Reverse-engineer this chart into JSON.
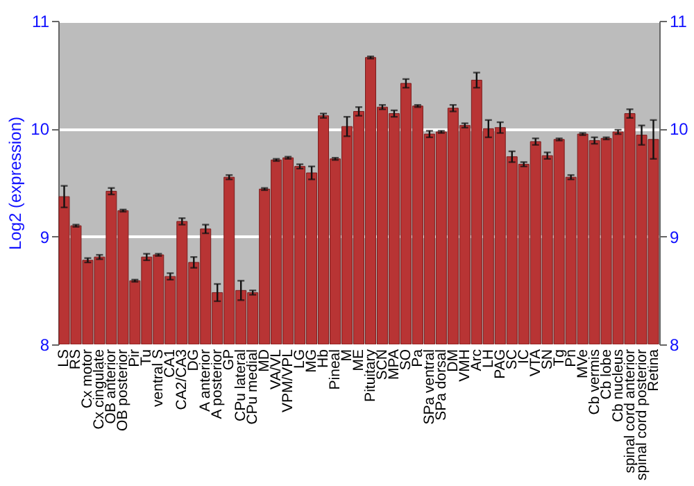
{
  "chart_data": {
    "type": "bar",
    "ylabel": "Log2 (expression)",
    "categories": [
      "LS",
      "RS",
      "Cx motor",
      "Cx cingulate",
      "OB anterior",
      "OB posterior",
      "Pir",
      "Tu",
      "ventral S",
      "CA1",
      "CA2/CA3",
      "DG",
      "A anterior",
      "A posterior",
      "GP",
      "CPu lateral",
      "CPu medial",
      "MD",
      "VA/VL",
      "VPM/VPL",
      "LG",
      "MG",
      "Hb",
      "Pineal",
      "M",
      "ME",
      "Pituitary",
      "SCN",
      "MPA",
      "SO",
      "Pa",
      "SPa ventral",
      "SPa dorsal",
      "DM",
      "VMH",
      "Arc",
      "LH",
      "PAG",
      "SC",
      "IC",
      "VTA",
      "SN",
      "Tg",
      "Pn",
      "MVe",
      "Cb vermis",
      "Cb lobe",
      "Cb nucleus",
      "spinal cord anterior",
      "spinal cord posterior",
      "Retina"
    ],
    "values": [
      9.37,
      9.1,
      8.78,
      8.81,
      9.42,
      9.24,
      8.59,
      8.81,
      8.83,
      8.63,
      9.14,
      8.76,
      9.07,
      8.48,
      9.55,
      8.5,
      8.48,
      9.44,
      9.71,
      9.73,
      9.65,
      9.59,
      10.12,
      9.72,
      10.02,
      10.16,
      10.66,
      10.2,
      10.14,
      10.42,
      10.21,
      9.95,
      9.97,
      10.19,
      10.03,
      10.45,
      10.0,
      10.01,
      9.74,
      9.67,
      9.88,
      9.75,
      9.9,
      9.55,
      9.95,
      9.89,
      9.91,
      9.97,
      10.14,
      9.94,
      9.9
    ],
    "errors": [
      0.1,
      0.01,
      0.02,
      0.02,
      0.03,
      0.01,
      0.01,
      0.03,
      0.01,
      0.03,
      0.03,
      0.05,
      0.04,
      0.08,
      0.02,
      0.09,
      0.02,
      0.01,
      0.01,
      0.01,
      0.02,
      0.06,
      0.02,
      0.01,
      0.09,
      0.04,
      0.01,
      0.02,
      0.03,
      0.04,
      0.01,
      0.03,
      0.01,
      0.03,
      0.02,
      0.07,
      0.08,
      0.05,
      0.05,
      0.02,
      0.03,
      0.03,
      0.01,
      0.02,
      0.01,
      0.03,
      0.01,
      0.02,
      0.04,
      0.09,
      0.18
    ],
    "color": "#b83434",
    "ylim": [
      8,
      11
    ],
    "yticks": [
      8,
      9,
      10,
      11
    ],
    "y2lim": [
      8,
      11
    ],
    "y2ticks": [
      8,
      9,
      10,
      11
    ],
    "grid": "y"
  }
}
